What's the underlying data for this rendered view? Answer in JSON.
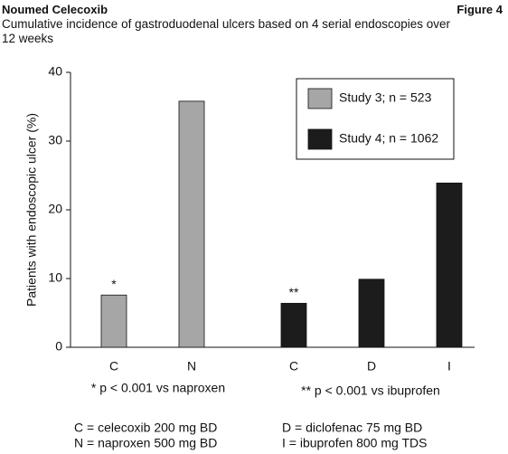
{
  "header": {
    "brand": "Noumed Celecoxib",
    "figure": "Figure 4"
  },
  "chart_data": {
    "type": "bar",
    "title": "Cumulative incidence of gastroduodenal ulcers based on 4 serial endoscopies over 12 weeks",
    "y_label": "Patients with endoscopic ulcer (%)",
    "categories": [
      "C",
      "N",
      "C",
      "D",
      "I"
    ],
    "series": [
      {
        "name": "Study 3; n = 523",
        "color": "#a6a6a6",
        "values": [
          7.6,
          35.8,
          null,
          null,
          null
        ]
      },
      {
        "name": "Study 4; n = 1062",
        "color": "#1c1c1c",
        "values": [
          null,
          null,
          6.4,
          9.9,
          23.9
        ]
      }
    ],
    "ylim": [
      0,
      40
    ],
    "yticks": [
      0,
      10,
      20,
      30,
      40
    ],
    "annotations": [
      "*",
      "**"
    ],
    "footnotes": [
      "* p < 0.001 vs naproxen",
      "** p < 0.001 vs ibuprofen"
    ],
    "abbreviations": [
      "C = celecoxib 200 mg BD",
      "N = naproxen 500 mg BD",
      "D = diclofenac 75 mg BD",
      "I = ibuprofen 800 mg TDS"
    ]
  }
}
